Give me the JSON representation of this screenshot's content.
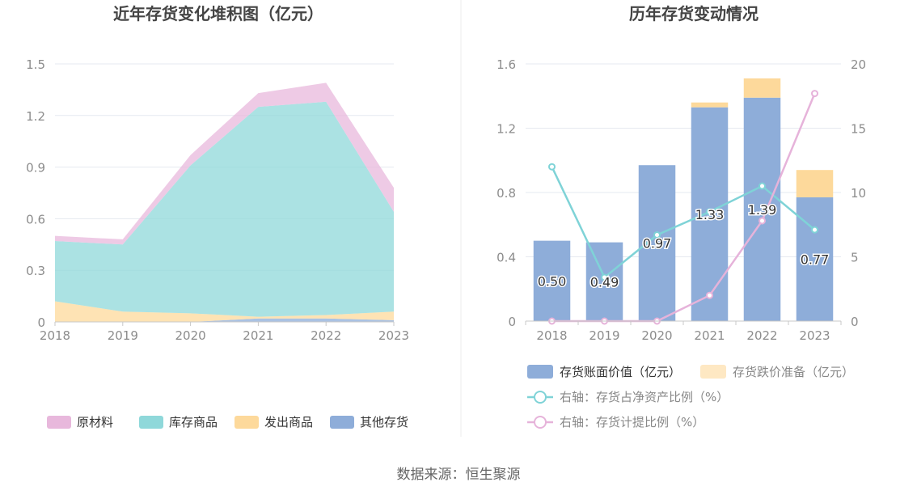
{
  "source_text": "数据来源：恒生聚源",
  "colors": {
    "raw_material": "#e8b8dc",
    "goods_in_stock": "#8fd8da",
    "goods_shipped": "#fdd99b",
    "other": "#8eadd9",
    "book_value_bar": "#8eadd9",
    "impairment_bar": "#fdd99b",
    "line_ratio_net_assets": "#7fd3d7",
    "line_provision_ratio": "#e6b3da",
    "grid": "#e6e9f0",
    "axis_text": "#8c8c8c",
    "title_text": "#444444"
  },
  "chart_data": [
    {
      "type": "area",
      "title": "近年存货变化堆积图（亿元）",
      "categories": [
        "2018",
        "2019",
        "2020",
        "2021",
        "2022",
        "2023"
      ],
      "ylim": [
        0,
        1.5
      ],
      "yticks": [
        "0",
        "0.3",
        "0.6",
        "0.9",
        "1.2",
        "1.5"
      ],
      "stacked": true,
      "grid": true,
      "legend_position": "bottom",
      "series": [
        {
          "name": "其他存货",
          "color_key": "other",
          "values": [
            0.0,
            0.0,
            0.0,
            0.02,
            0.02,
            0.01
          ]
        },
        {
          "name": "发出商品",
          "color_key": "goods_shipped",
          "values": [
            0.12,
            0.06,
            0.05,
            0.01,
            0.02,
            0.05
          ]
        },
        {
          "name": "库存商品",
          "color_key": "goods_in_stock",
          "values": [
            0.35,
            0.39,
            0.86,
            1.22,
            1.24,
            0.58
          ]
        },
        {
          "name": "原材料",
          "color_key": "raw_material",
          "values": [
            0.03,
            0.03,
            0.06,
            0.08,
            0.11,
            0.14
          ]
        }
      ],
      "legend_order": [
        "原材料",
        "库存商品",
        "发出商品",
        "其他存货"
      ]
    },
    {
      "type": "bar",
      "title": "历年存货变动情况",
      "categories": [
        "2018",
        "2019",
        "2020",
        "2021",
        "2022",
        "2023"
      ],
      "ylim": [
        0,
        1.6
      ],
      "yticks": [
        "0",
        "0.4",
        "0.8",
        "1.2",
        "1.6"
      ],
      "y2lim": [
        0,
        20
      ],
      "y2ticks": [
        "0",
        "5",
        "10",
        "15",
        "20"
      ],
      "stacked": true,
      "grid": true,
      "legend_position": "bottom",
      "series": [
        {
          "name": "存货账面价值（亿元）",
          "kind": "bar",
          "color_key": "book_value_bar",
          "values": [
            0.5,
            0.49,
            0.97,
            1.33,
            1.39,
            0.77
          ],
          "labels": [
            "0.50",
            "0.49",
            "0.97",
            "1.33",
            "1.39",
            "0.77"
          ]
        },
        {
          "name": "存货跌价准备（亿元）",
          "kind": "bar",
          "color_key": "impairment_bar",
          "values": [
            0.0,
            0.0,
            0.0,
            0.03,
            0.12,
            0.17
          ]
        },
        {
          "name": "右轴：存货占净资产比例（%）",
          "kind": "line",
          "axis": "right",
          "color_key": "line_ratio_net_assets",
          "values": [
            12.0,
            3.4,
            6.7,
            8.5,
            10.5,
            7.1
          ]
        },
        {
          "name": "右轴：存货计提比例（%）",
          "kind": "line",
          "axis": "right",
          "color_key": "line_provision_ratio",
          "values": [
            0.0,
            0.0,
            0.0,
            2.0,
            7.8,
            17.7
          ]
        }
      ]
    }
  ]
}
